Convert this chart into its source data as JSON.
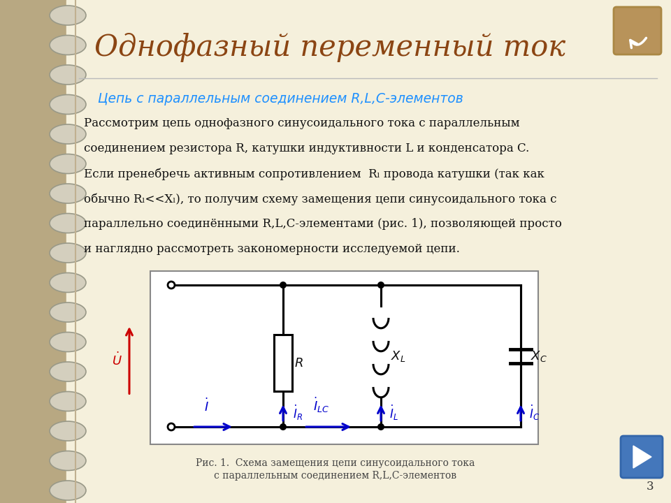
{
  "bg_color": "#c9b99a",
  "page_color": "#f5f0dc",
  "title": "Однофазный переменный ток",
  "title_color": "#8b4513",
  "subtitle": "  Цепь с параллельным соединением R,L,C-элементов",
  "subtitle_color": "#1e90ff",
  "body_lines": [
    "Рассмотрим цепь однофазного синусоидального тока с параллельным",
    "соединением резистора R, катушки индуктивности L и конденсатора C.",
    "Если пренебречь активным сопротивлением  Rₗ провода катушки (так как",
    "обычно Rₗ<<Xₗ), то получим схему замещения цепи синусоидального тока с",
    "параллельно соединёнными R,L,C-элементами (рис. 1), позволяющей просто",
    "и наглядно рассмотреть закономерности исследуемой цепи."
  ],
  "fig_caption_line1": "Рис. 1.  Схема замещения цепи синусоидального тока",
  "fig_caption_line2": "с параллельным соединением R,L,C-элементов",
  "page_number": "3",
  "line_color": "#000000",
  "blue": "#0000cc",
  "red": "#cc0000",
  "btn_back_color": "#b8935a",
  "btn_fwd_color": "#4477bb"
}
